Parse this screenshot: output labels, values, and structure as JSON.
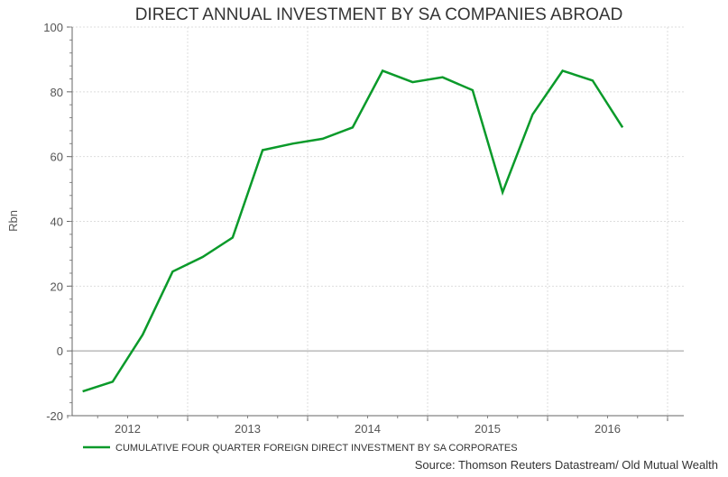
{
  "chart_data": {
    "type": "line",
    "title": "DIRECT ANNUAL INVESTMENT BY SA COMPANIES ABROAD",
    "ylabel": "Rbn",
    "xlabel": "",
    "ylim": [
      -20,
      100
    ],
    "yticks": [
      -20,
      0,
      20,
      40,
      60,
      80,
      100
    ],
    "xtick_labels": [
      "2012",
      "2013",
      "2014",
      "2015",
      "2016"
    ],
    "grid": true,
    "x": [
      "2012Q1",
      "2012Q2",
      "2012Q3",
      "2012Q4",
      "2013Q1",
      "2013Q2",
      "2013Q3",
      "2013Q4",
      "2014Q1",
      "2014Q2",
      "2014Q3",
      "2014Q4",
      "2015Q1",
      "2015Q2",
      "2015Q3",
      "2015Q4",
      "2016Q1",
      "2016Q2",
      "2016Q3"
    ],
    "series": [
      {
        "name": "CUMULATIVE FOUR QUARTER FOREIGN DIRECT INVESTMENT BY SA CORPORATES",
        "color": "#0a9a2a",
        "values": [
          -12.5,
          -9.5,
          5,
          24.5,
          29,
          35,
          62,
          64,
          65.5,
          69,
          86.5,
          83,
          84.5,
          80.5,
          49,
          73,
          86.5,
          83.5,
          69
        ]
      }
    ],
    "legend_position": "bottom-left",
    "source": "Source: Thomson Reuters Datastream/ Old Mutual Wealth"
  }
}
